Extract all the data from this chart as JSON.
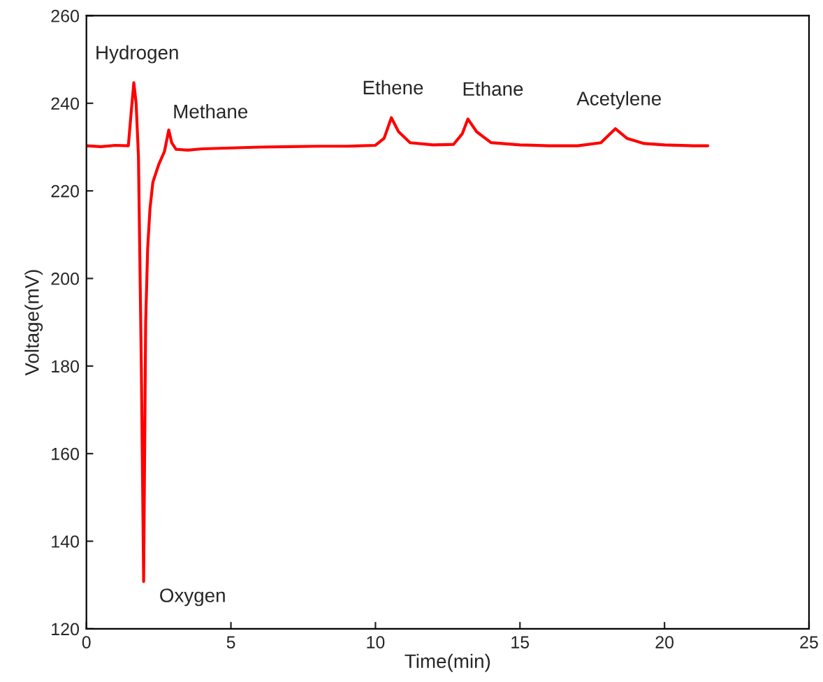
{
  "chart_data": {
    "type": "line",
    "xlabel": "Time(min)",
    "ylabel": "Voltage(mV)",
    "xlim": [
      0,
      25
    ],
    "xticks": [
      0,
      5,
      10,
      15,
      20,
      25
    ],
    "ylim": [
      120,
      260
    ],
    "yticks": [
      120,
      140,
      160,
      180,
      200,
      220,
      240,
      260
    ],
    "grid": false,
    "legend": false,
    "marker": "none",
    "line_style": "solid",
    "series": [
      {
        "color": "#ff0000",
        "x": [
          0,
          0.5,
          1.0,
          1.45,
          1.55,
          1.64,
          1.72,
          1.8,
          1.9,
          1.98,
          2.05,
          2.12,
          2.2,
          2.3,
          2.5,
          2.7,
          2.85,
          2.95,
          3.1,
          3.5,
          4,
          5,
          6,
          7,
          8,
          9,
          10,
          10.3,
          10.55,
          10.8,
          11.2,
          12,
          12.7,
          13.0,
          13.2,
          13.5,
          14,
          15,
          16,
          17,
          17.8,
          18.3,
          18.7,
          19.3,
          20,
          21,
          21.5
        ],
        "values": [
          230.3,
          230.1,
          230.4,
          230.3,
          238,
          244.7,
          240,
          228,
          180,
          130.8,
          190,
          207,
          216,
          222,
          226,
          229,
          233.9,
          231,
          229.5,
          229.3,
          229.6,
          229.8,
          230,
          230.1,
          230.2,
          230.2,
          230.4,
          232,
          236.7,
          233.5,
          231,
          230.5,
          230.6,
          233,
          236.4,
          233.5,
          231,
          230.5,
          230.3,
          230.3,
          231,
          234.2,
          232,
          230.8,
          230.5,
          230.3,
          230.3
        ]
      }
    ],
    "annotations": [
      {
        "text": "Hydrogen",
        "x": 1.64,
        "y": 244.7
      },
      {
        "text": "Methane",
        "x": 2.85,
        "y": 233.9
      },
      {
        "text": "Oxygen",
        "x": 1.98,
        "y": 130.8
      },
      {
        "text": "Ethene",
        "x": 10.55,
        "y": 236.7
      },
      {
        "text": "Ethane",
        "x": 13.2,
        "y": 236.4
      },
      {
        "text": "Acetylene",
        "x": 18.3,
        "y": 234.2
      }
    ]
  }
}
